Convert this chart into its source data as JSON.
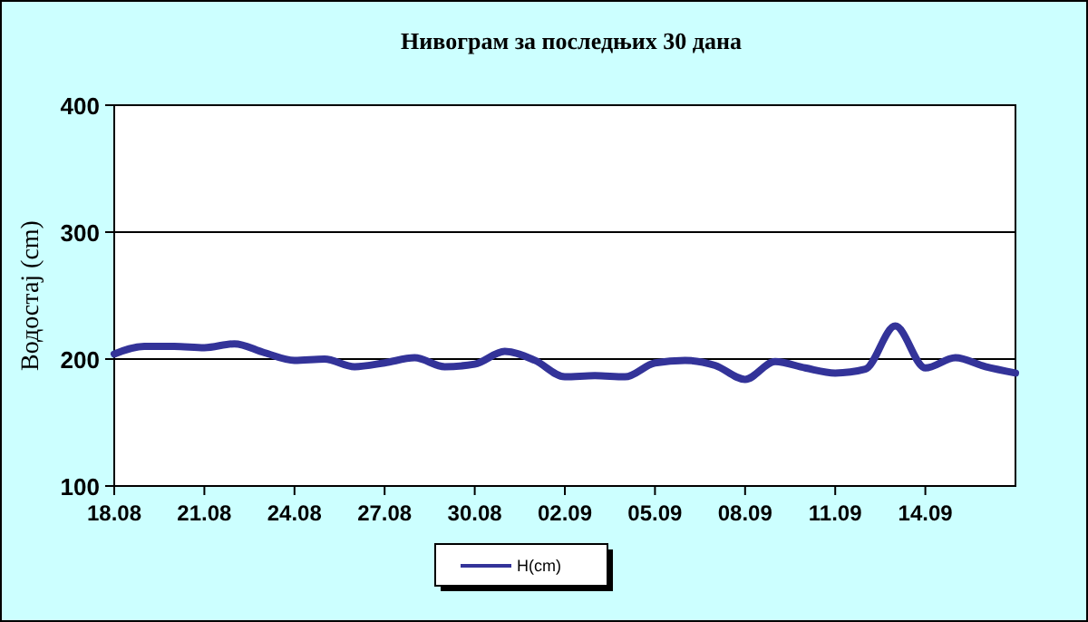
{
  "chart_data": {
    "type": "line",
    "title": "Нивограм за последњих 30 дана",
    "ylabel": "Водостај (cm)",
    "x": [
      "--08-18",
      "--08-19",
      "--08-20",
      "--08-21",
      "--08-22",
      "--08-23",
      "--08-24",
      "--08-25",
      "--08-26",
      "--08-27",
      "--08-28",
      "--08-29",
      "--08-30",
      "--08-31",
      "--09-01",
      "--09-02",
      "--09-03",
      "--09-04",
      "--09-05",
      "--09-06",
      "--09-07",
      "--09-08",
      "--09-09",
      "--09-10",
      "--09-11",
      "--09-12",
      "--09-13",
      "--09-14",
      "--09-15",
      "--09-16",
      "--09-17"
    ],
    "series": [
      {
        "name": "H(cm)",
        "color": "#333399",
        "values": [
          204,
          210,
          210,
          209,
          212,
          205,
          199,
          200,
          194,
          197,
          201,
          194,
          196,
          206,
          199,
          186,
          187,
          186,
          197,
          199,
          195,
          184,
          198,
          193,
          189,
          192,
          226,
          193,
          201,
          194,
          189
        ]
      }
    ],
    "xlim": [
      "--08-18",
      "--09-17"
    ],
    "xticks": [
      {
        "value": "--08-18",
        "label": "18.08"
      },
      {
        "value": "--08-21",
        "label": "21.08"
      },
      {
        "value": "--08-24",
        "label": "24.08"
      },
      {
        "value": "--08-27",
        "label": "27.08"
      },
      {
        "value": "--08-30",
        "label": "30.08"
      },
      {
        "value": "--09-02",
        "label": "02.09"
      },
      {
        "value": "--09-05",
        "label": "05.09"
      },
      {
        "value": "--09-08",
        "label": "08.09"
      },
      {
        "value": "--09-11",
        "label": "11.09"
      },
      {
        "value": "--09-14",
        "label": "14.09"
      }
    ],
    "ylim": [
      100,
      400
    ],
    "yticks": [
      100,
      200,
      300,
      400
    ],
    "grid": "y",
    "legend": "bottom",
    "marker": "none",
    "line_style": "solid"
  }
}
